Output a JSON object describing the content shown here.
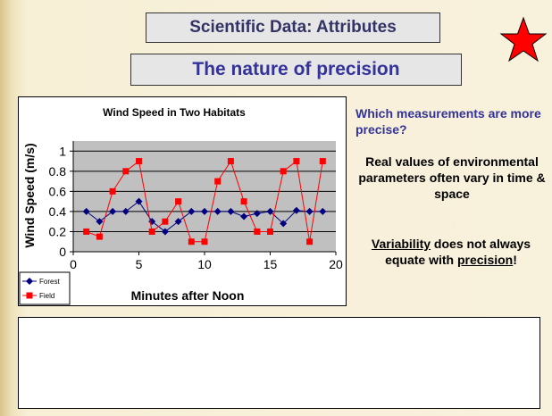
{
  "slide": {
    "title": "Scientific Data: Attributes",
    "subtitle": "The nature of precision",
    "question": "Which measurements are more precise?",
    "note": "Real values of environmental parameters often vary in time & space",
    "conclusion": [
      "Variability",
      " does not always equate with ",
      "precision",
      "!"
    ]
  },
  "chart_data": {
    "type": "line",
    "title": "Wind Speed in Two Habitats",
    "x_label": "Minutes after Noon",
    "y_label": "Wind Speed (m/s)",
    "x": [
      1,
      2,
      3,
      4,
      5,
      6,
      7,
      8,
      9,
      10,
      11,
      12,
      13,
      14,
      15,
      16,
      17,
      18,
      19
    ],
    "series": [
      {
        "name": "Forest",
        "color": "#000080",
        "marker": "diamond",
        "values": [
          0.4,
          0.3,
          0.4,
          0.4,
          0.5,
          0.3,
          0.2,
          0.3,
          0.4,
          0.4,
          0.4,
          0.4,
          0.35,
          0.38,
          0.4,
          0.28,
          0.41,
          0.4,
          0.4
        ]
      },
      {
        "name": "Field",
        "color": "#ff0000",
        "marker": "square",
        "values": [
          0.2,
          0.15,
          0.6,
          0.8,
          0.9,
          0.2,
          0.3,
          0.5,
          0.1,
          0.1,
          0.7,
          0.9,
          0.5,
          0.2,
          0.2,
          0.8,
          0.9,
          0.1,
          0.9
        ]
      }
    ],
    "xlim": [
      0,
      20
    ],
    "xticks": [
      0,
      5,
      10,
      15,
      20
    ],
    "ylim": [
      0,
      1.1
    ],
    "yticks": [
      0,
      0.2,
      0.4,
      0.6,
      0.8,
      1
    ],
    "grid": true,
    "legend": "lower left"
  }
}
